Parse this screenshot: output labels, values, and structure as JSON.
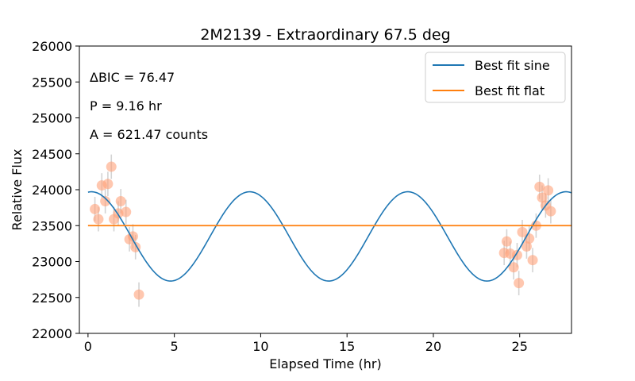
{
  "chart_data": {
    "type": "scatter",
    "title": "2M2139 - Extraordinary 67.5 deg",
    "xlabel": "Elapsed Time (hr)",
    "ylabel": "Relative Flux",
    "xlim": [
      -0.5,
      28
    ],
    "ylim": [
      22000,
      26000
    ],
    "xticks": [
      0,
      5,
      10,
      15,
      20,
      25
    ],
    "yticks": [
      22000,
      22500,
      23000,
      23500,
      24000,
      24500,
      25000,
      25500,
      26000
    ],
    "grid": false,
    "legend_position": "top-right",
    "annotations": [
      "ΔBIC = 76.47",
      "P = 9.16 hr",
      "A = 621.47 counts"
    ],
    "colors": {
      "sine": "#1f77b4",
      "flat": "#ff7f0e",
      "points": "#ffa27a",
      "errorbars": "#d3d3d3"
    },
    "series": [
      {
        "name": "Best fit sine",
        "kind": "line",
        "model": "sine",
        "period": 9.16,
        "amplitude": 621.47,
        "offset": 23350,
        "peak_x": 0.2,
        "x_range": [
          0,
          28
        ]
      },
      {
        "name": "Best fit flat",
        "kind": "line",
        "model": "flat",
        "value": 23500,
        "x_range": [
          0,
          28
        ]
      },
      {
        "name": "",
        "kind": "scatter_errorbar",
        "points": [
          {
            "x": 0.4,
            "y": 23730,
            "err": 170
          },
          {
            "x": 0.6,
            "y": 23590,
            "err": 170
          },
          {
            "x": 0.8,
            "y": 24060,
            "err": 170
          },
          {
            "x": 1.0,
            "y": 23840,
            "err": 170
          },
          {
            "x": 1.15,
            "y": 24080,
            "err": 170
          },
          {
            "x": 1.35,
            "y": 24320,
            "err": 170
          },
          {
            "x": 1.5,
            "y": 23590,
            "err": 170
          },
          {
            "x": 1.75,
            "y": 23670,
            "err": 170
          },
          {
            "x": 1.9,
            "y": 23840,
            "err": 170
          },
          {
            "x": 2.2,
            "y": 23690,
            "err": 170
          },
          {
            "x": 2.4,
            "y": 23310,
            "err": 170
          },
          {
            "x": 2.6,
            "y": 23350,
            "err": 170
          },
          {
            "x": 2.75,
            "y": 23200,
            "err": 170
          },
          {
            "x": 2.95,
            "y": 22540,
            "err": 170
          },
          {
            "x": 24.1,
            "y": 23120,
            "err": 170
          },
          {
            "x": 24.25,
            "y": 23280,
            "err": 170
          },
          {
            "x": 24.45,
            "y": 23110,
            "err": 170
          },
          {
            "x": 24.65,
            "y": 22920,
            "err": 170
          },
          {
            "x": 24.85,
            "y": 23090,
            "err": 170
          },
          {
            "x": 24.95,
            "y": 22700,
            "err": 170
          },
          {
            "x": 25.15,
            "y": 23410,
            "err": 170
          },
          {
            "x": 25.4,
            "y": 23210,
            "err": 170
          },
          {
            "x": 25.55,
            "y": 23320,
            "err": 170
          },
          {
            "x": 25.75,
            "y": 23020,
            "err": 170
          },
          {
            "x": 25.95,
            "y": 23500,
            "err": 170
          },
          {
            "x": 26.15,
            "y": 24040,
            "err": 170
          },
          {
            "x": 26.3,
            "y": 23890,
            "err": 170
          },
          {
            "x": 26.5,
            "y": 23780,
            "err": 170
          },
          {
            "x": 26.65,
            "y": 23990,
            "err": 170
          },
          {
            "x": 26.8,
            "y": 23700,
            "err": 170
          }
        ]
      }
    ]
  }
}
